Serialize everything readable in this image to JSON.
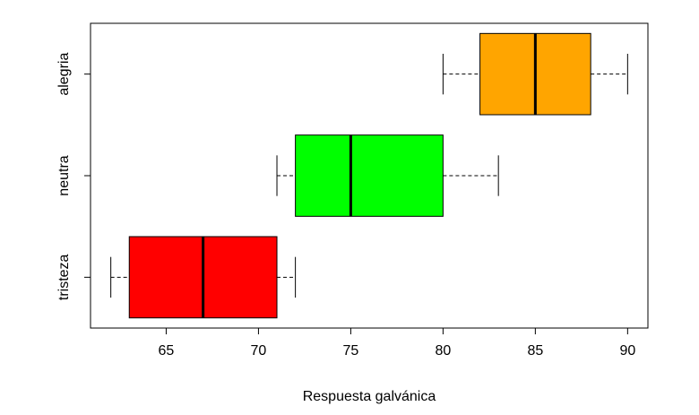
{
  "chart_data": {
    "type": "boxplot",
    "orientation": "horizontal",
    "title": "",
    "xlabel": "Respuesta galvánica",
    "ylabel": "",
    "xlim": [
      60.9,
      91.1
    ],
    "xticks": [
      65,
      70,
      75,
      80,
      85,
      90
    ],
    "grid": false,
    "categories": [
      "tristeza",
      "neutra",
      "alegria"
    ],
    "series": [
      {
        "category": "tristeza",
        "min": 62,
        "q1": 63,
        "median": 67,
        "q3": 71,
        "max": 72,
        "color": "#ff0000"
      },
      {
        "category": "neutra",
        "min": 71,
        "q1": 72,
        "median": 75,
        "q3": 80,
        "max": 83,
        "color": "#00ff00"
      },
      {
        "category": "alegria",
        "min": 80,
        "q1": 82,
        "median": 85,
        "q3": 88,
        "max": 90,
        "color": "#ffa500"
      }
    ]
  }
}
